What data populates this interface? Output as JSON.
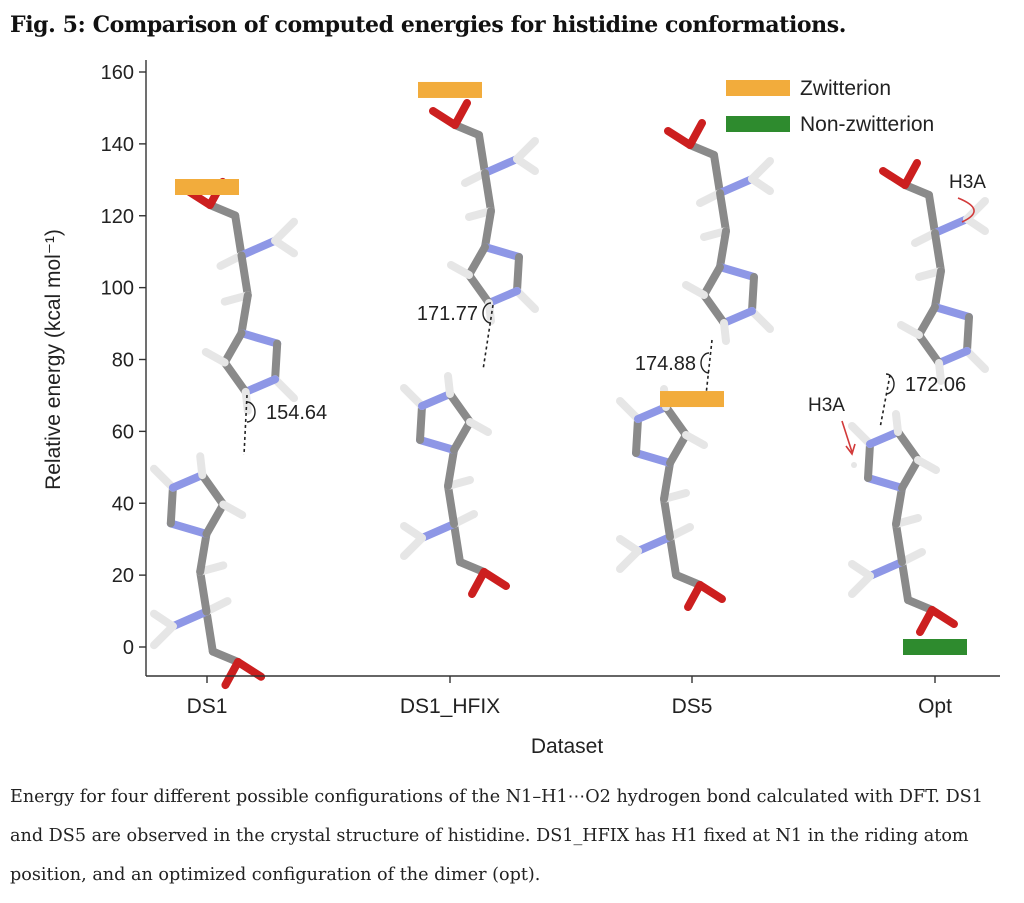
{
  "figure": {
    "title": "Fig. 5: Comparison of computed energies for histidine conformations.",
    "caption": "Energy for four different possible configurations of the N1–H1⋯O2 hydrogen bond calculated with DFT. DS1 and DS5 are observed in the crystal structure of histidine. DS1_HFIX has H1 fixed at N1 in the riding atom position, and an optimized configuration of the dimer (opt)."
  },
  "chart_data": {
    "type": "scatter",
    "xlabel": "Dataset",
    "ylabel": "Relative energy (kcal mol⁻¹)",
    "categories": [
      "DS1",
      "DS1_HFIX",
      "DS5",
      "Opt"
    ],
    "ylim": [
      0,
      160
    ],
    "yticks": [
      0,
      20,
      40,
      60,
      80,
      100,
      120,
      140,
      160
    ],
    "grid": false,
    "legend_position": "top-right",
    "series": [
      {
        "name": "Zwitterion",
        "color": "#f2ac3c",
        "points": [
          {
            "category": "DS1",
            "y": 128
          },
          {
            "category": "DS1_HFIX",
            "y": 155
          },
          {
            "category": "DS5",
            "y": 69
          }
        ]
      },
      {
        "name": "Non-zwitterion",
        "color": "#2e8b2e",
        "points": [
          {
            "category": "Opt",
            "y": 0
          }
        ]
      }
    ],
    "annotations": [
      {
        "category": "DS1",
        "text": "154.64"
      },
      {
        "category": "DS1_HFIX",
        "text": "171.77"
      },
      {
        "category": "DS5",
        "text": "174.88"
      },
      {
        "category": "Opt",
        "text": "172.06"
      },
      {
        "category": "Opt",
        "text": "H3A",
        "role": "atom-label-top"
      },
      {
        "category": "Opt",
        "text": "H3A",
        "role": "atom-label-bottom"
      }
    ],
    "atom_colors": {
      "carbon": "#8a8a8a",
      "oxygen": "#cc1f1f",
      "nitrogen": "#8e97e6",
      "hydrogen": "#e6e6e6"
    }
  }
}
